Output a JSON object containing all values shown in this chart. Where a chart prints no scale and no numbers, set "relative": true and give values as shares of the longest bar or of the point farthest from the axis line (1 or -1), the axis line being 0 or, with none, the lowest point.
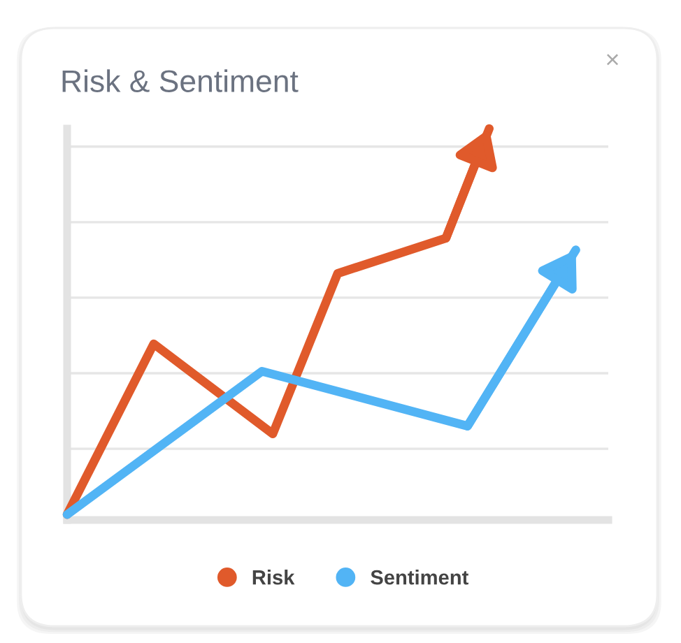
{
  "chart_data": {
    "type": "line",
    "title": "Risk & Sentiment",
    "annotations": [
      "×"
    ],
    "relative": true,
    "tick_labels": false,
    "grid": "y",
    "legend": "bottom",
    "marker": "none",
    "line_style": "solid",
    "categories": [
      null,
      null,
      null,
      null,
      null,
      null,
      null,
      null,
      null,
      null,
      null,
      null,
      null,
      null,
      null,
      null,
      null,
      null,
      null,
      null,
      null,
      null,
      null,
      null,
      null,
      null,
      null,
      null,
      null,
      null,
      null,
      null,
      null,
      null,
      null,
      null,
      null,
      null,
      null,
      null,
      null,
      null,
      null,
      null,
      null,
      null,
      null,
      null,
      null,
      null,
      null
    ],
    "series": [
      {
        "name": "Risk",
        "color": "#e05a2b",
        "values": [
          0.014,
          null,
          null,
          null,
          null,
          null,
          null,
          null,
          0.45,
          null,
          null,
          null,
          null,
          null,
          null,
          null,
          null,
          null,
          null,
          0.22,
          null,
          null,
          null,
          null,
          null,
          0.63,
          null,
          null,
          null,
          null,
          null,
          null,
          null,
          null,
          null,
          0.72,
          null,
          null,
          null,
          1,
          null,
          null,
          null,
          null,
          null,
          null,
          null,
          null,
          null,
          null,
          null
        ]
      },
      {
        "name": "Sentiment",
        "color": "#52b4f5",
        "values": [
          0.014,
          null,
          null,
          null,
          null,
          null,
          null,
          null,
          null,
          null,
          null,
          null,
          null,
          null,
          null,
          null,
          null,
          null,
          0.38,
          null,
          null,
          null,
          null,
          null,
          null,
          null,
          null,
          null,
          null,
          null,
          null,
          null,
          null,
          null,
          null,
          null,
          null,
          0.24,
          null,
          null,
          null,
          null,
          null,
          null,
          null,
          null,
          null,
          0.69,
          null,
          null,
          null
        ]
      }
    ]
  }
}
